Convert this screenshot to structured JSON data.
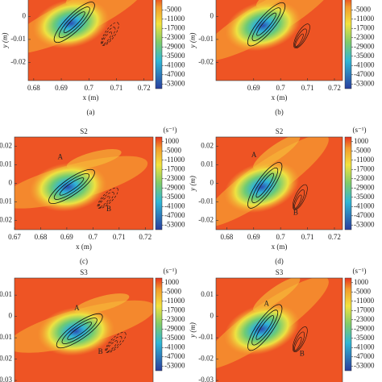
{
  "colorbar": {
    "lim": [
      -56000,
      4000
    ],
    "ticks": [
      1000,
      -5000,
      -11000,
      -17000,
      -23000,
      -29000,
      -35000,
      -41000,
      -47000,
      -53000
    ]
  },
  "panels": [
    {
      "label": "(a)",
      "xlabel": "x (m)",
      "ylabel": "y (m)",
      "xlim": [
        0.678,
        0.7233
      ],
      "ylim": [
        -0.028,
        0.009
      ],
      "xticks": [
        0.68,
        0.69,
        0.7,
        0.71,
        0.72
      ],
      "yticks": [
        0,
        -0.01,
        -0.02
      ]
    },
    {
      "label": "(b)",
      "xlabel": "x (m)",
      "ylabel": "y (m)",
      "xlim": [
        0.676,
        0.723
      ],
      "ylim": [
        -0.028,
        0.009
      ],
      "xticks": [
        0.69,
        0.7,
        0.71,
        0.72
      ],
      "yticks": [
        0,
        -0.01,
        -0.02
      ]
    },
    {
      "label": "(c)",
      "title": "S2",
      "unit": "(s⁻¹)",
      "xlabel": "x (m)",
      "ylabel": "y (m)",
      "xlim": [
        0.67,
        0.723
      ],
      "ylim": [
        -0.025,
        0.025
      ],
      "xticks": [
        0.67,
        0.68,
        0.69,
        0.7,
        0.71,
        0.72
      ],
      "yticks": [
        0.02,
        0.01,
        0,
        -0.01,
        -0.02
      ],
      "annotations": [
        "A",
        "B"
      ]
    },
    {
      "label": "(d)",
      "title": "S2",
      "unit": "(s⁻¹)",
      "xlabel": "x (m)",
      "ylabel": "y (m)",
      "xlim": [
        0.676,
        0.723
      ],
      "ylim": [
        -0.025,
        0.025
      ],
      "xticks": [
        0.68,
        0.69,
        0.7,
        0.71,
        0.72
      ],
      "yticks": [
        0.02,
        0.01,
        0,
        -0.01,
        -0.02
      ],
      "annotations": [
        "A",
        "B"
      ]
    },
    {
      "title": "S3",
      "unit": "(s⁻¹)",
      "ylabel": "y (m)",
      "xlim": [
        0.67,
        0.723
      ],
      "ylim": [
        -0.033,
        0.018
      ],
      "yticks": [
        0.01,
        0,
        -0.01,
        -0.02,
        -0.03
      ],
      "annotations": [
        "A",
        "B"
      ]
    },
    {
      "title": "S3",
      "unit": "(s⁻¹)",
      "ylabel": "y (m)",
      "xlim": [
        0.676,
        0.723
      ],
      "ylim": [
        -0.033,
        0.018
      ],
      "yticks": [
        0.01,
        0,
        -0.01,
        -0.02,
        -0.03
      ],
      "annotations": [
        "A",
        "B"
      ]
    }
  ]
}
